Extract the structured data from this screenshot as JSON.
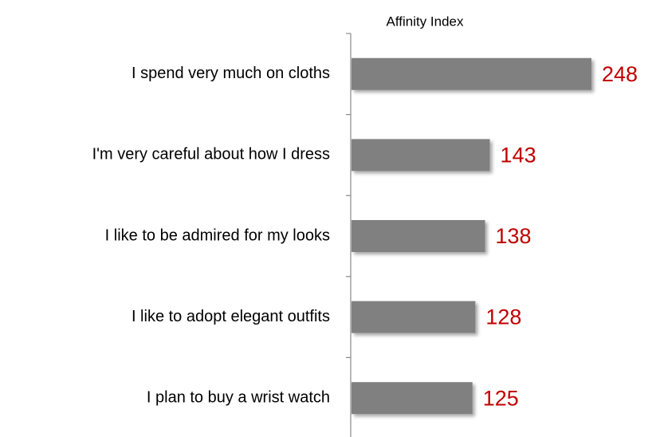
{
  "chart_data": {
    "type": "bar",
    "orientation": "horizontal",
    "axis_label": "Affinity Index",
    "categories": [
      "I spend very much on cloths",
      "I'm very careful about how I dress",
      "I like to be admired for my looks",
      "I like to adopt elegant outfits",
      "I plan to buy a wrist watch"
    ],
    "values": [
      248,
      143,
      138,
      128,
      125
    ],
    "color": "#808080",
    "label_color": "#c00000"
  }
}
